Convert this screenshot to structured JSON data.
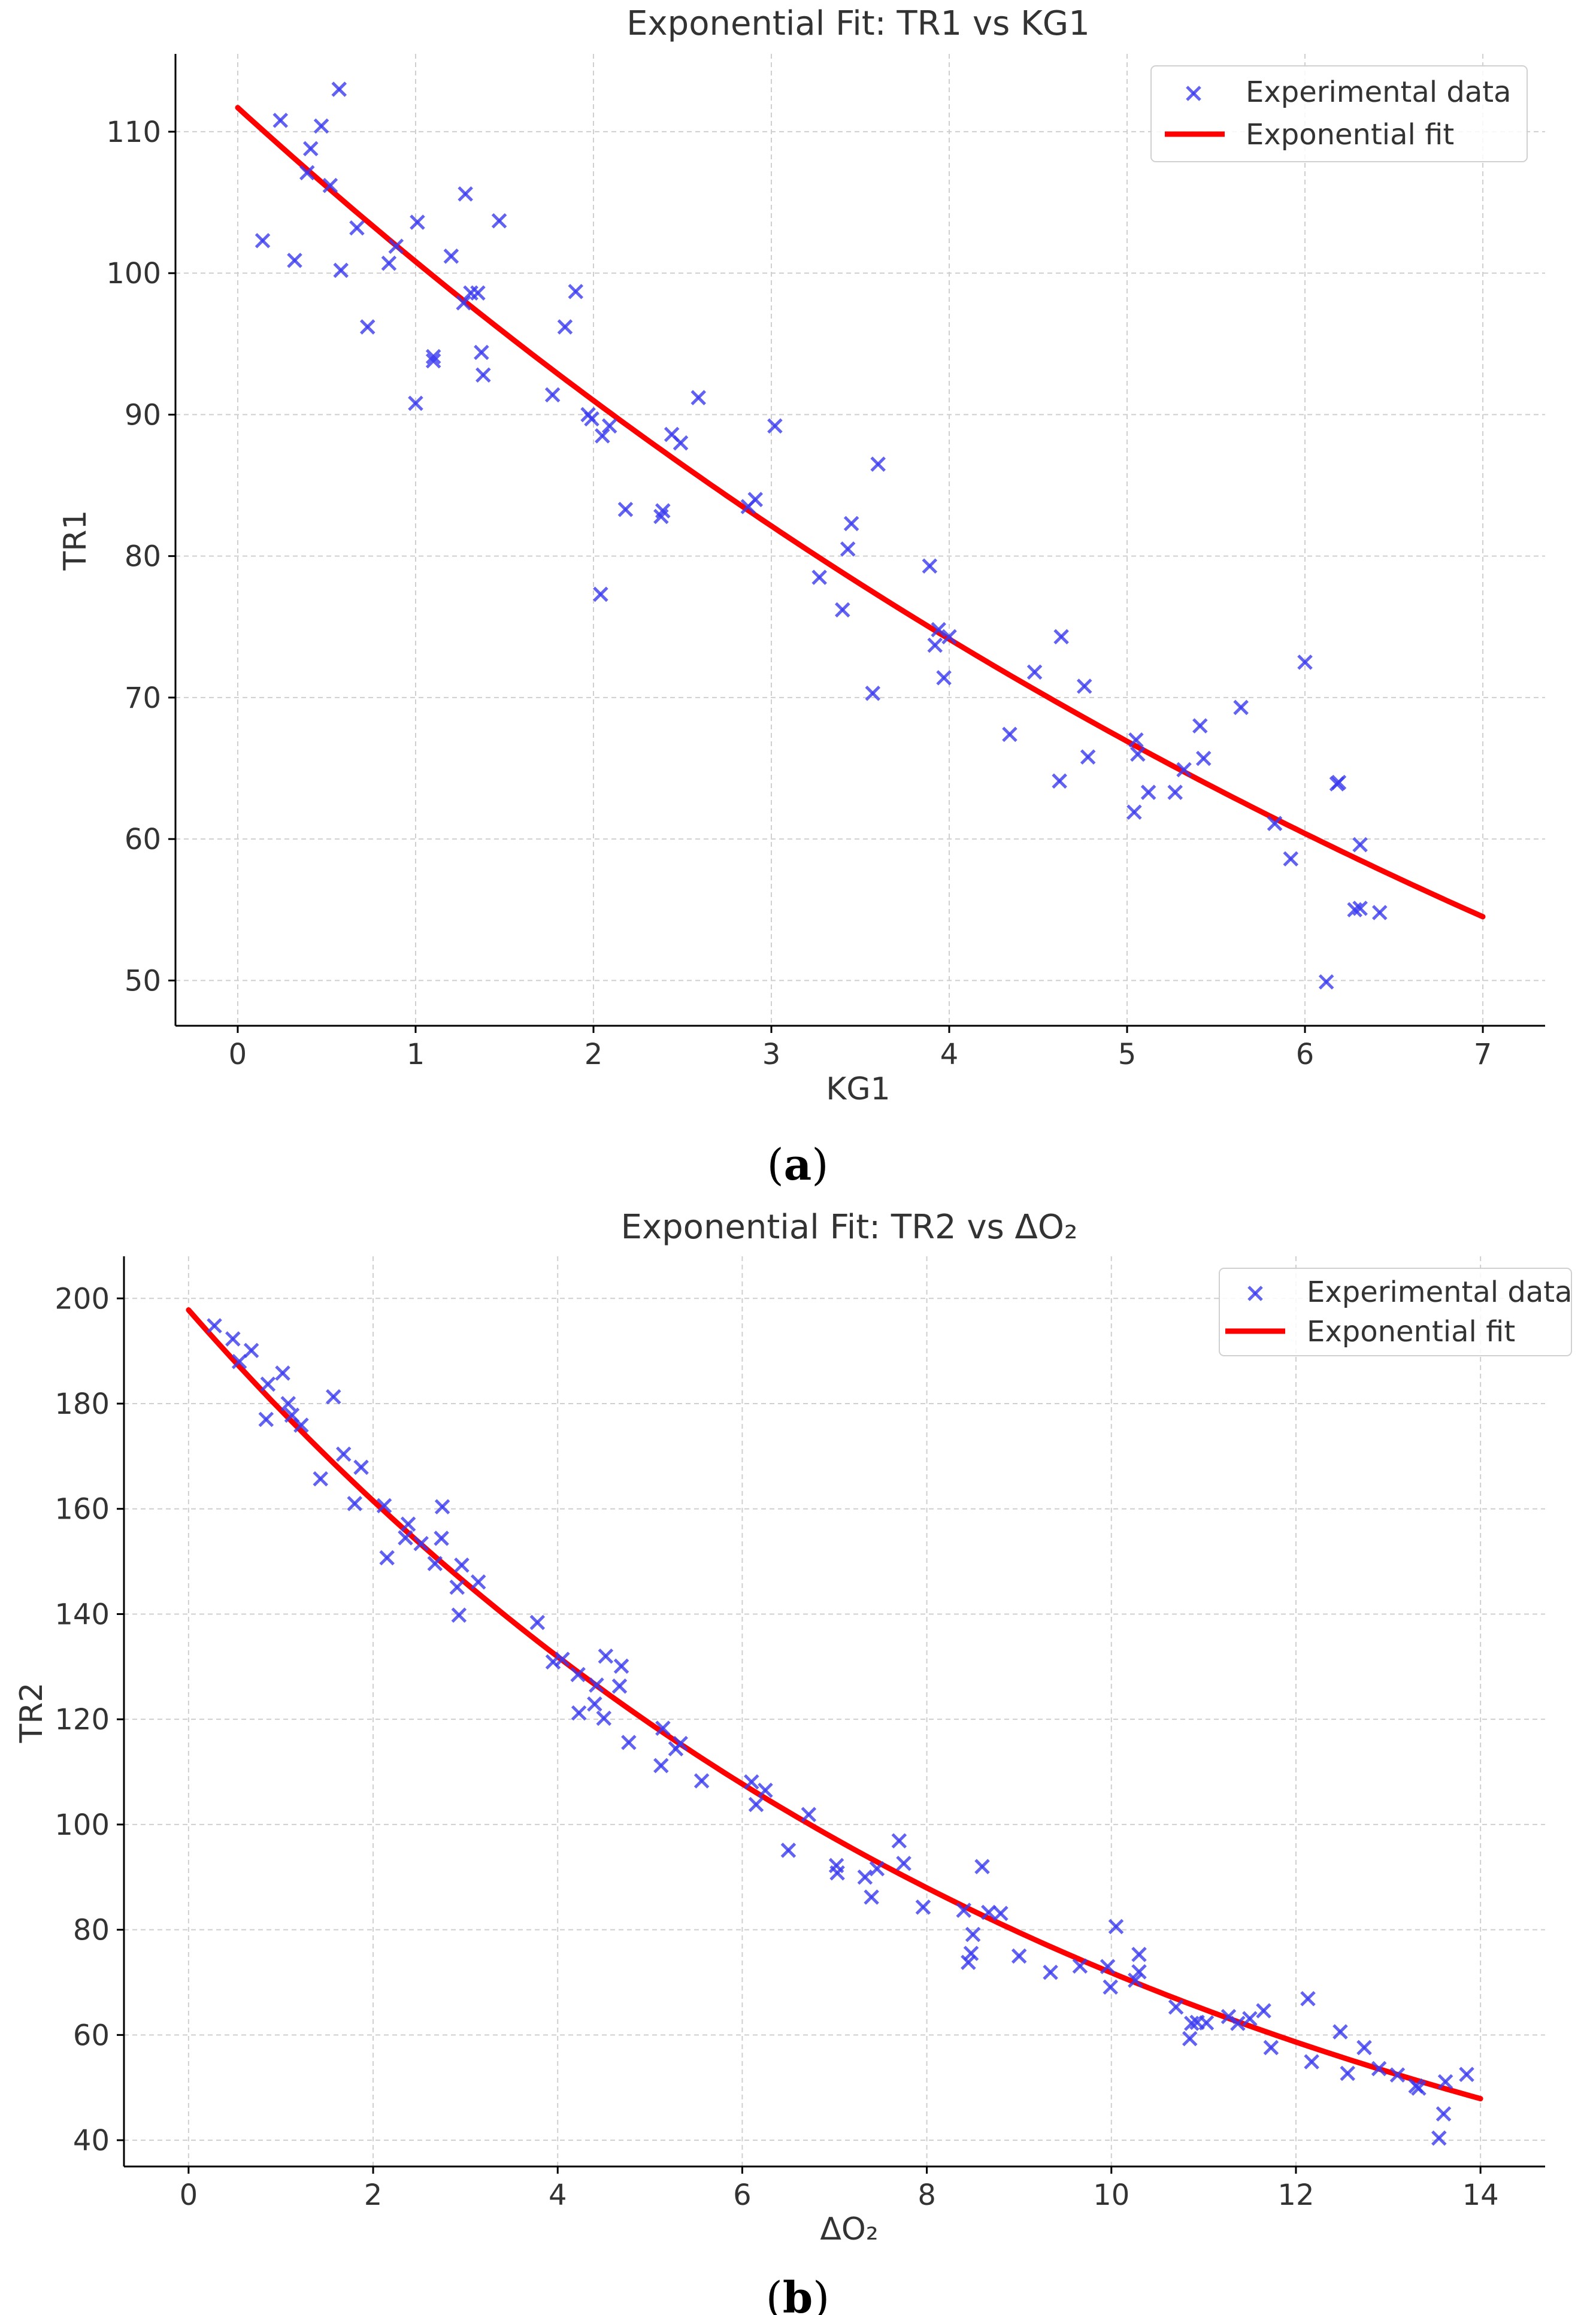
{
  "colors": {
    "marker": "#3b3bf0",
    "fit": "#ff0000"
  },
  "chart_data": [
    {
      "type": "scatter",
      "title": "Exponential Fit: TR1 vs KG1",
      "xlabel": "KG1",
      "ylabel": "TR1",
      "caption_letter": "a",
      "xlim": [
        -0.35,
        7.35
      ],
      "ylim": [
        46.8,
        115.5
      ],
      "xticks": [
        0,
        1,
        2,
        3,
        4,
        5,
        6,
        7
      ],
      "yticks": [
        50,
        60,
        70,
        80,
        90,
        100,
        110
      ],
      "grid": true,
      "legend": {
        "placement": "top-right",
        "entries": [
          "Experimental data",
          "Exponential fit"
        ]
      },
      "fit": {
        "label": "Exponential fit",
        "model": "a*exp(b*x)",
        "a": 111.7,
        "b": -0.1025,
        "x_range": [
          0,
          7
        ]
      },
      "series": [
        {
          "name": "Experimental data",
          "marker": "x",
          "x": [
            0.14,
            0.24,
            0.32,
            0.39,
            0.41,
            0.47,
            0.52,
            0.57,
            0.58,
            0.67,
            0.73,
            0.85,
            0.89,
            1.0,
            1.01,
            1.1,
            1.1,
            1.2,
            1.27,
            1.28,
            1.31,
            1.35,
            1.37,
            1.38,
            1.47,
            1.77,
            1.84,
            1.9,
            1.97,
            1.99,
            2.04,
            2.05,
            2.09,
            2.18,
            2.38,
            2.39,
            2.44,
            2.49,
            2.59,
            2.87,
            2.91,
            3.02,
            3.27,
            3.4,
            3.43,
            3.45,
            3.57,
            3.6,
            3.89,
            3.92,
            3.94,
            3.97,
            4.0,
            4.34,
            4.48,
            4.62,
            4.63,
            4.76,
            4.78,
            5.04,
            5.05,
            5.06,
            5.12,
            5.27,
            5.32,
            5.41,
            5.43,
            5.64,
            5.83,
            5.92,
            6.0,
            6.12,
            6.18,
            6.19,
            6.28,
            6.31,
            6.31,
            6.42
          ],
          "y": [
            102.3,
            110.8,
            100.9,
            107.1,
            108.8,
            110.4,
            106.2,
            113.0,
            100.2,
            103.2,
            96.2,
            100.7,
            101.9,
            90.8,
            103.6,
            94.1,
            93.8,
            101.2,
            97.9,
            105.6,
            98.6,
            98.6,
            94.4,
            92.8,
            103.7,
            91.4,
            96.2,
            98.7,
            90.0,
            89.7,
            77.3,
            88.5,
            89.2,
            83.3,
            82.8,
            83.2,
            88.6,
            88.0,
            91.2,
            83.5,
            84.0,
            89.2,
            78.5,
            76.2,
            80.5,
            82.3,
            70.3,
            86.5,
            79.3,
            73.7,
            74.8,
            71.4,
            74.3,
            67.4,
            71.8,
            64.1,
            74.3,
            70.8,
            65.8,
            61.9,
            67.0,
            66.0,
            63.3,
            63.3,
            64.9,
            68.0,
            65.7,
            69.3,
            61.1,
            58.6,
            72.5,
            49.9,
            63.9,
            64.0,
            55.0,
            55.1,
            59.6,
            54.8
          ]
        }
      ]
    },
    {
      "type": "scatter",
      "title": "Exponential Fit: TR2 vs ΔO₂",
      "xlabel": "ΔO₂",
      "ylabel": "TR2",
      "caption_letter": "b",
      "xlim": [
        -0.7,
        14.7
      ],
      "ylim": [
        35,
        208
      ],
      "xticks": [
        0,
        2,
        4,
        6,
        8,
        10,
        12,
        14
      ],
      "yticks": [
        40,
        60,
        80,
        100,
        120,
        140,
        160,
        180,
        200
      ],
      "grid": true,
      "legend": {
        "placement": "top-right",
        "entries": [
          "Experimental data",
          "Exponential fit"
        ]
      },
      "fit": {
        "label": "Exponential fit",
        "model": "a*exp(b*x)",
        "a": 197.8,
        "b": -0.1013,
        "x_range": [
          0,
          14
        ]
      },
      "series": [
        {
          "name": "Experimental data",
          "marker": "x",
          "x": [
            0.28,
            0.48,
            0.55,
            0.68,
            0.84,
            0.86,
            1.02,
            1.08,
            1.12,
            1.22,
            1.43,
            1.57,
            1.68,
            1.8,
            1.87,
            2.12,
            2.15,
            2.35,
            2.38,
            2.52,
            2.67,
            2.74,
            2.75,
            2.91,
            2.93,
            2.96,
            3.14,
            3.78,
            3.95,
            4.05,
            4.22,
            4.23,
            4.4,
            4.42,
            4.5,
            4.52,
            4.67,
            4.69,
            4.77,
            5.12,
            5.14,
            5.28,
            5.33,
            5.56,
            6.1,
            6.15,
            6.25,
            6.5,
            6.72,
            7.02,
            7.03,
            7.33,
            7.4,
            7.46,
            7.7,
            7.75,
            7.96,
            8.4,
            8.45,
            8.48,
            8.5,
            8.6,
            8.67,
            8.8,
            9.0,
            9.34,
            9.66,
            9.96,
            9.99,
            10.05,
            10.26,
            10.3,
            10.3,
            10.7,
            10.85,
            10.87,
            10.93,
            11.03,
            11.27,
            11.37,
            11.5,
            11.65,
            11.73,
            12.13,
            12.17,
            12.48,
            12.56,
            12.74,
            12.9,
            13.1,
            13.3,
            13.33,
            13.55,
            13.6,
            13.62,
            13.85
          ],
          "y": [
            194.8,
            192.3,
            188.0,
            190.1,
            177.0,
            183.7,
            185.8,
            180.0,
            177.8,
            175.9,
            165.7,
            181.3,
            170.4,
            161.0,
            167.9,
            160.6,
            150.7,
            154.5,
            157.1,
            153.4,
            149.6,
            154.4,
            160.4,
            145.1,
            139.8,
            149.3,
            146.1,
            138.4,
            130.9,
            131.4,
            128.5,
            121.2,
            122.9,
            126.5,
            120.2,
            132.0,
            126.3,
            130.1,
            115.6,
            111.2,
            118.3,
            114.4,
            115.4,
            108.3,
            108.1,
            103.8,
            106.5,
            95.1,
            101.9,
            92.2,
            90.8,
            90.0,
            86.2,
            91.6,
            96.9,
            92.6,
            84.3,
            83.7,
            73.8,
            75.5,
            79.1,
            92.0,
            83.3,
            83.1,
            75.0,
            71.9,
            73.1,
            73.0,
            69.1,
            80.6,
            70.4,
            72.0,
            75.3,
            65.3,
            59.3,
            62.2,
            62.4,
            62.3,
            63.5,
            62.2,
            63.1,
            64.6,
            57.6,
            66.9,
            54.9,
            60.6,
            52.7,
            57.6,
            53.6,
            52.4,
            50.3,
            49.9,
            40.4,
            45.0,
            51.1,
            52.5
          ]
        }
      ]
    }
  ]
}
